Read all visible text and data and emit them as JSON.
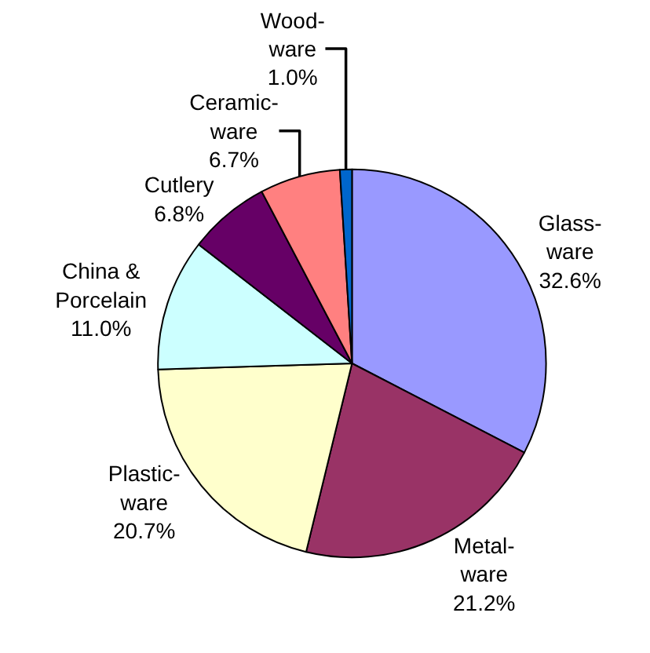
{
  "chart_data": {
    "type": "pie",
    "categories": [
      "Glass-\nware",
      "Metal-\nware",
      "Plastic-\nware",
      "China &\nPorcelain",
      "Cutlery",
      "Ceramic-\nware",
      "Wood-\nware"
    ],
    "values": [
      32.6,
      21.2,
      20.7,
      11.0,
      6.8,
      6.7,
      1.0
    ],
    "colors": [
      "#9999ff",
      "#993366",
      "#ffffcc",
      "#ccffff",
      "#660066",
      "#ff8080",
      "#0066cc"
    ],
    "value_labels": [
      "32.6%",
      "21.2%",
      "20.7%",
      "11.0%",
      "6.8%",
      "6.7%",
      "1.0%"
    ],
    "legend": false
  }
}
